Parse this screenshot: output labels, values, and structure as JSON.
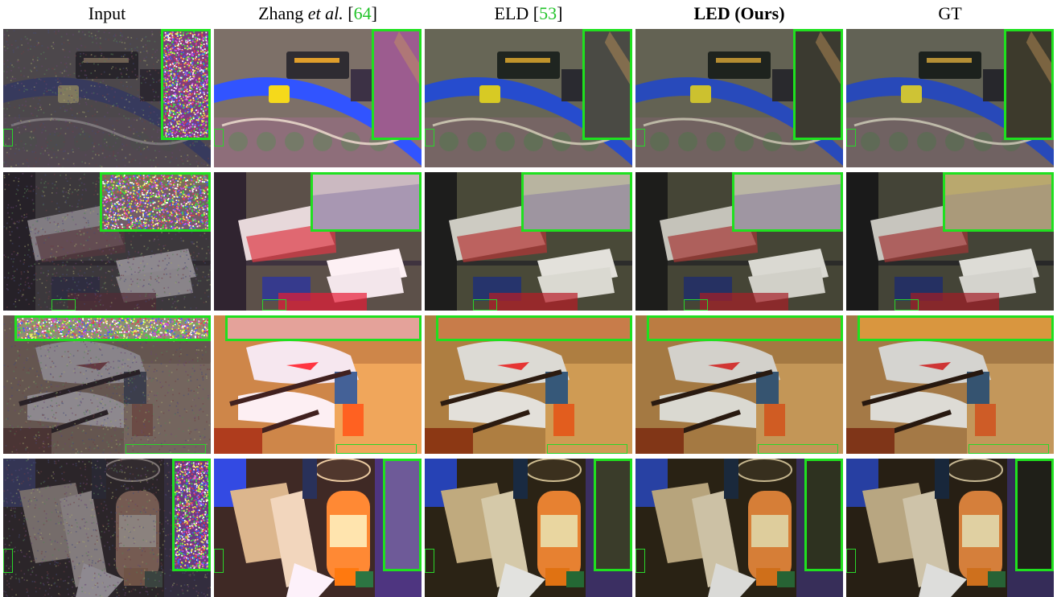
{
  "figure": {
    "columns": [
      {
        "id": "input",
        "prefix": "Input",
        "italic": "",
        "ref_open": "",
        "ref": "",
        "ref_close": "",
        "bold": false
      },
      {
        "id": "zhang",
        "prefix": "Zhang ",
        "italic": "et al.",
        "ref_open": " [",
        "ref": "64",
        "ref_close": "]",
        "bold": false
      },
      {
        "id": "eld",
        "prefix": "ELD ",
        "italic": "",
        "ref_open": "[",
        "ref": "53",
        "ref_close": "]",
        "bold": false
      },
      {
        "id": "led",
        "prefix": "LED (Ours)",
        "italic": "",
        "ref_open": "",
        "ref": "",
        "ref_close": "",
        "bold": true
      },
      {
        "id": "gt",
        "prefix": "GT",
        "italic": "",
        "ref_open": "",
        "ref": "",
        "ref_close": "",
        "bold": false
      }
    ],
    "rows": [
      {
        "id": "train-scene",
        "zoom_position": "top-right-tall"
      },
      {
        "id": "magazine-scene",
        "zoom_position": "top-right-wide"
      },
      {
        "id": "shoes-scene",
        "zoom_position": "top-full-width"
      },
      {
        "id": "box-scene",
        "zoom_position": "right-tall"
      }
    ],
    "colors": {
      "zoom_border": "#1fe01f",
      "reference_text": "#22c32a"
    }
  }
}
